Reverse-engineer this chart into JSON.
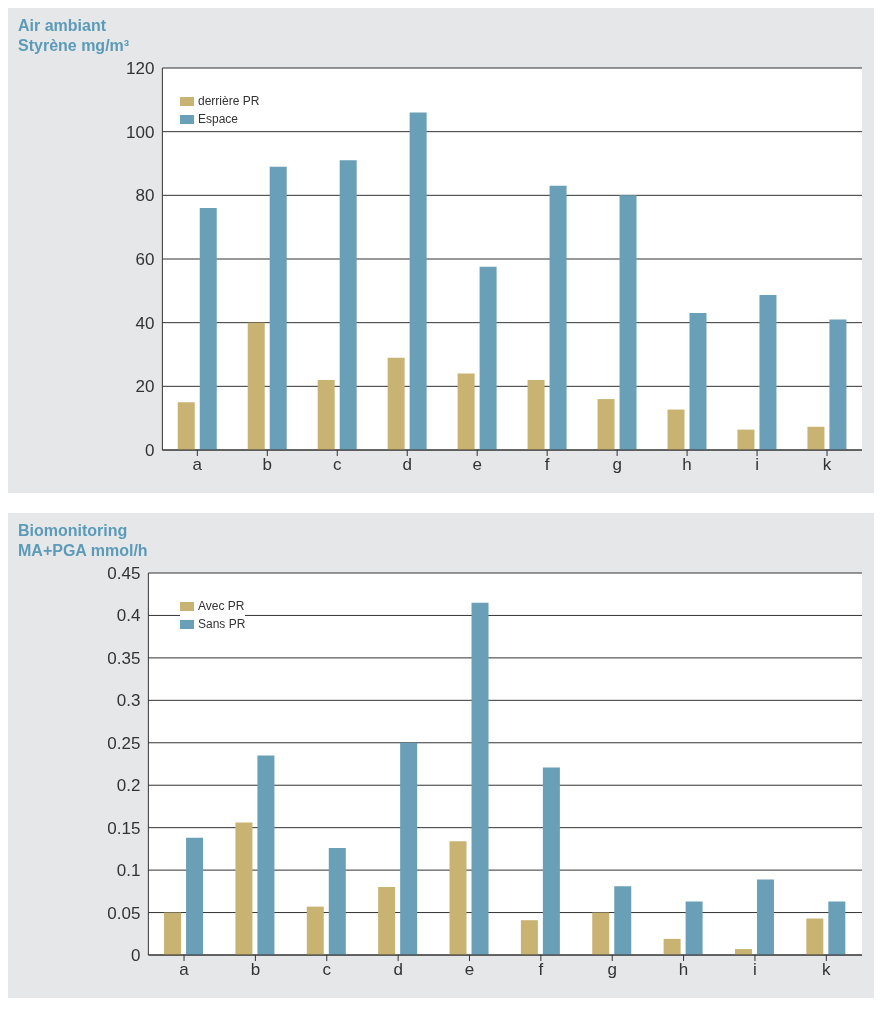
{
  "chart_data": [
    {
      "type": "bar",
      "title": "Air ambiant",
      "subtitle": "Styrène mg/m³",
      "categories": [
        "a",
        "b",
        "c",
        "d",
        "e",
        "f",
        "g",
        "h",
        "i",
        "k"
      ],
      "series": [
        {
          "name": "derrière PR",
          "color": "#c8b372",
          "values": [
            15,
            40,
            22,
            29,
            24,
            22,
            16,
            12.7,
            6.4,
            7.3
          ]
        },
        {
          "name": "Espace",
          "color": "#6a9fb8",
          "values": [
            76,
            89,
            91,
            106,
            57.6,
            83,
            80,
            43,
            48.7,
            41
          ]
        }
      ],
      "ylim": [
        0,
        120
      ],
      "yticks": [
        0,
        20,
        40,
        60,
        80,
        100,
        120
      ],
      "grid": "y",
      "legend": "top left"
    },
    {
      "type": "bar",
      "title": "Biomonitoring",
      "subtitle": "MA+PGA mmol/h",
      "categories": [
        "a",
        "b",
        "c",
        "d",
        "e",
        "f",
        "g",
        "h",
        "i",
        "k"
      ],
      "series": [
        {
          "name": "Avec PR",
          "color": "#c8b372",
          "values": [
            0.05,
            0.156,
            0.057,
            0.08,
            0.134,
            0.041,
            0.05,
            0.019,
            0.007,
            0.043
          ]
        },
        {
          "name": "Sans PR",
          "color": "#6a9fb8",
          "values": [
            0.138,
            0.235,
            0.126,
            0.25,
            0.415,
            0.221,
            0.081,
            0.063,
            0.089,
            0.063
          ]
        }
      ],
      "ylim": [
        0,
        0.45
      ],
      "yticks": [
        0,
        0.05,
        0.1,
        0.15,
        0.2,
        0.25,
        0.3,
        0.35,
        0.4,
        0.45
      ],
      "grid": "y",
      "legend": "top left"
    }
  ]
}
